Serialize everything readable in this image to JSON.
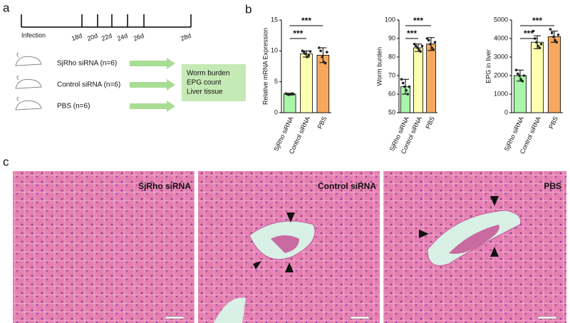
{
  "panel_labels": [
    "a",
    "b",
    "c"
  ],
  "timeline": {
    "labels": [
      "Infection",
      "18d",
      "20d",
      "22d",
      "24d",
      "26d",
      "28d"
    ]
  },
  "groups": [
    "SjRho siRNA (n=6)",
    "Control siRNA (n=6)",
    "PBS (n=6)"
  ],
  "outcomes": [
    "Worm burden",
    "EPG count",
    "Liver tissue"
  ],
  "chart_data": [
    {
      "type": "bar",
      "y_label": "Relative mRNA Expression",
      "categories": [
        "SjRho siRNA",
        "Control siRNA",
        "PBS"
      ],
      "values": [
        3.0,
        9.5,
        9.3
      ],
      "errors": [
        0.15,
        0.5,
        1.2
      ],
      "points": [
        [
          3.1,
          3.0,
          2.9,
          3.0,
          3.1,
          3.0
        ],
        [
          10.0,
          9.8,
          9.5,
          9.0,
          9.3,
          9.9
        ],
        [
          10.5,
          10.0,
          9.0,
          8.2,
          8.0,
          9.8
        ]
      ],
      "colors": [
        "#a9f5a9",
        "#ffffb0",
        "#f4a95e"
      ],
      "ylim": [
        0,
        15
      ],
      "yticks": [
        0,
        5,
        10,
        15
      ],
      "significance": [
        "***",
        "***"
      ]
    },
    {
      "type": "bar",
      "y_label": "Worm burden",
      "categories": [
        "SjRho siRNA",
        "Control siRNA",
        "PBS"
      ],
      "values": [
        64,
        85,
        87
      ],
      "errors": [
        4,
        2,
        3.5
      ],
      "points": [
        [
          68,
          66,
          64,
          62,
          60,
          64
        ],
        [
          87,
          86,
          85,
          84,
          83,
          86
        ],
        [
          90,
          89,
          87,
          85,
          84,
          88
        ]
      ],
      "colors": [
        "#a9f5a9",
        "#ffffb0",
        "#f4a95e"
      ],
      "ylim": [
        50,
        100
      ],
      "yticks": [
        50,
        60,
        70,
        80,
        90,
        100
      ],
      "significance": [
        "***",
        "***"
      ]
    },
    {
      "type": "bar",
      "y_label": "EPG in liver",
      "categories": [
        "SjRho siRNA",
        "Control siRNA",
        "PBS"
      ],
      "values": [
        2000,
        3800,
        4100
      ],
      "errors": [
        300,
        350,
        300
      ],
      "points": [
        [
          2300,
          2100,
          2000,
          1800,
          1700,
          2000
        ],
        [
          4400,
          4000,
          3800,
          3600,
          3500,
          3700
        ],
        [
          4500,
          4300,
          4100,
          3900,
          3800,
          4200
        ]
      ],
      "colors": [
        "#a9f5a9",
        "#ffffb0",
        "#f4a95e"
      ],
      "ylim": [
        0,
        5000
      ],
      "yticks": [
        0,
        1000,
        2000,
        3000,
        4000,
        5000
      ],
      "significance": [
        "***",
        "***"
      ]
    }
  ],
  "images": [
    "SjRho siRNA",
    "Control siRNA",
    "PBS"
  ]
}
